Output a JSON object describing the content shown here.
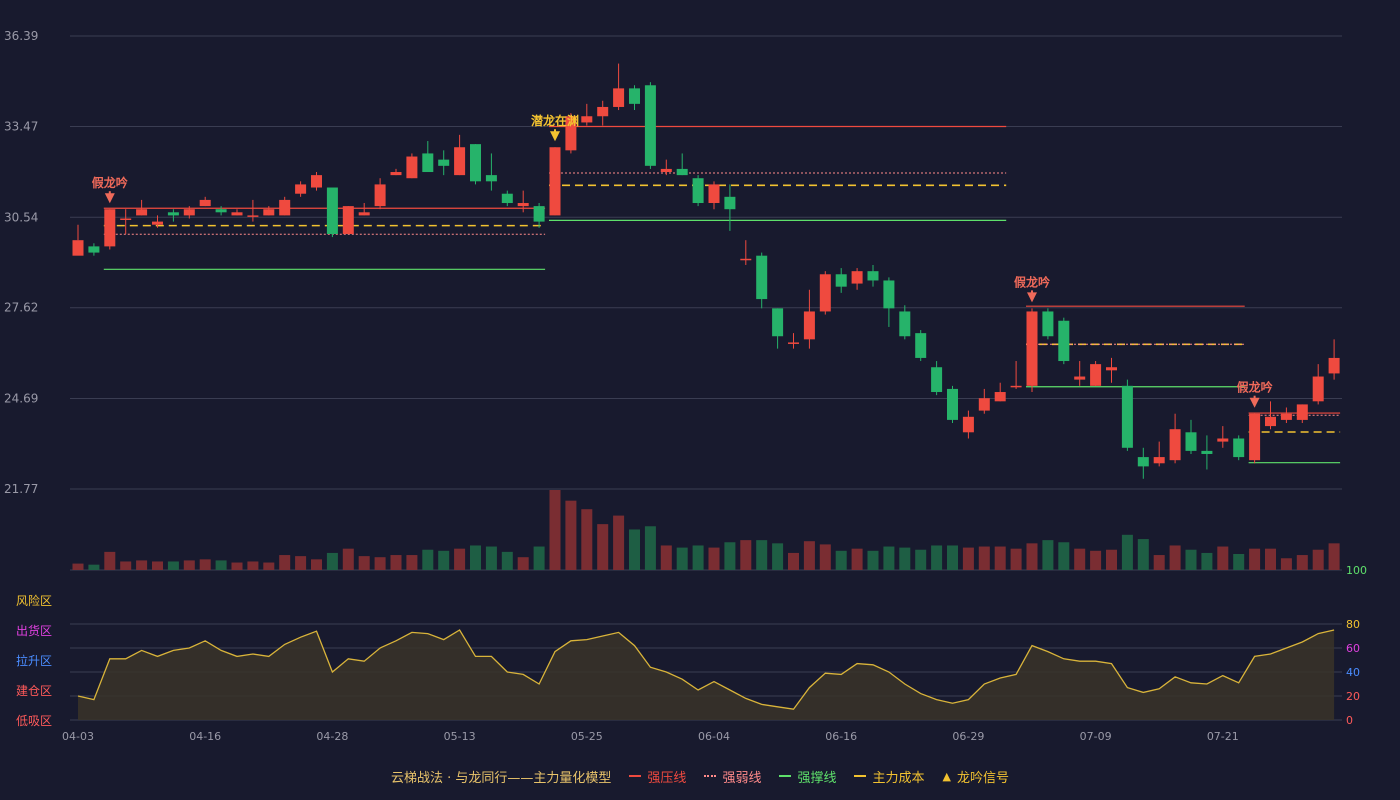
{
  "colors": {
    "bg": "#181a2e",
    "up": "#ef4a3f",
    "down": "#26b36a",
    "grid": "#3a3d52",
    "axis_text": "#9a9aa8",
    "pressure": "#ef4a3f",
    "weak": "#ff8a8a",
    "support": "#5ee06b",
    "cost": "#f2c230",
    "osc_line": "#d9b43a",
    "osc_fill": "#3a3428",
    "signal_gold": "#f2c230",
    "signal_red": "#ef6a5a"
  },
  "legend": {
    "model": "云梯战法 · 与龙同行——主力量化模型",
    "pressure": "强压线",
    "weak": "强弱线",
    "support": "强撑线",
    "cost": "主力成本",
    "signal": "龙吟信号"
  },
  "oscillator": {
    "zones": [
      "风险区",
      "出货区",
      "拉升区",
      "建仓区",
      "低吸区"
    ],
    "zone_colors": [
      "#f2c230",
      "#e040e0",
      "#4a8cff",
      "#ff5a5a",
      "#ff5a5a"
    ],
    "right_ticks": [
      "100",
      "80",
      "60",
      "40",
      "20",
      "0"
    ],
    "right_tick_colors": [
      "#5ee06b",
      "#f2c230",
      "#e040e0",
      "#4a8cff",
      "#ff5a5a",
      "#ff5a5a"
    ]
  },
  "chart_data": {
    "type": "candlestick",
    "y_ticks": [
      "36.39",
      "33.47",
      "30.54",
      "27.62",
      "24.69",
      "21.77"
    ],
    "ylim": [
      21.77,
      36.39
    ],
    "x_ticks": [
      {
        "index": 0,
        "label": "04-03"
      },
      {
        "index": 8,
        "label": "04-16"
      },
      {
        "index": 16,
        "label": "04-28"
      },
      {
        "index": 24,
        "label": "05-13"
      },
      {
        "index": 32,
        "label": "05-25"
      },
      {
        "index": 40,
        "label": "06-04"
      },
      {
        "index": 48,
        "label": "06-16"
      },
      {
        "index": 56,
        "label": "06-29"
      },
      {
        "index": 64,
        "label": "07-09"
      },
      {
        "index": 72,
        "label": "07-21"
      }
    ],
    "candles": [
      [
        29.3,
        29.8,
        30.3,
        29.8
      ],
      [
        29.6,
        29.4,
        29.7,
        29.3
      ],
      [
        29.6,
        30.8,
        30.8,
        29.5
      ],
      [
        30.5,
        30.5,
        30.8,
        30.0
      ],
      [
        30.6,
        30.8,
        31.1,
        30.6
      ],
      [
        30.3,
        30.4,
        30.6,
        30.2
      ],
      [
        30.7,
        30.6,
        30.8,
        30.4
      ],
      [
        30.6,
        30.8,
        30.9,
        30.5
      ],
      [
        30.9,
        31.1,
        31.2,
        30.9
      ],
      [
        30.8,
        30.7,
        30.9,
        30.6
      ],
      [
        30.6,
        30.7,
        30.8,
        30.6
      ],
      [
        30.6,
        30.6,
        31.1,
        30.4
      ],
      [
        30.6,
        30.8,
        30.9,
        30.6
      ],
      [
        30.6,
        31.1,
        31.2,
        30.6
      ],
      [
        31.3,
        31.6,
        31.7,
        31.2
      ],
      [
        31.5,
        31.9,
        32.0,
        31.4
      ],
      [
        31.5,
        30.0,
        30.1,
        29.9
      ],
      [
        30.0,
        30.9,
        30.9,
        30.0
      ],
      [
        30.6,
        30.7,
        31.0,
        30.6
      ],
      [
        30.9,
        31.6,
        31.8,
        30.8
      ],
      [
        31.9,
        32.0,
        32.1,
        31.9
      ],
      [
        31.8,
        32.5,
        32.6,
        31.8
      ],
      [
        32.6,
        32.0,
        33.0,
        32.0
      ],
      [
        32.4,
        32.2,
        32.7,
        31.9
      ],
      [
        31.9,
        32.8,
        33.2,
        31.9
      ],
      [
        32.9,
        31.7,
        32.9,
        31.6
      ],
      [
        31.9,
        31.7,
        32.6,
        31.4
      ],
      [
        31.3,
        31.0,
        31.4,
        30.9
      ],
      [
        30.9,
        31.0,
        31.4,
        30.7
      ],
      [
        30.9,
        30.4,
        31.0,
        30.2
      ],
      [
        30.6,
        32.8,
        32.8,
        30.6
      ],
      [
        32.7,
        33.8,
        33.9,
        32.6
      ],
      [
        33.6,
        33.8,
        34.2,
        33.5
      ],
      [
        33.8,
        34.1,
        34.3,
        33.5
      ],
      [
        34.1,
        34.7,
        35.5,
        34.0
      ],
      [
        34.7,
        34.2,
        34.8,
        34.0
      ],
      [
        34.8,
        32.2,
        34.9,
        32.1
      ],
      [
        32.0,
        32.1,
        32.4,
        31.9
      ],
      [
        32.1,
        31.9,
        32.6,
        31.9
      ],
      [
        31.8,
        31.0,
        31.9,
        30.9
      ],
      [
        31.0,
        31.6,
        31.7,
        30.8
      ],
      [
        31.2,
        30.8,
        31.6,
        30.1
      ],
      [
        29.2,
        29.2,
        29.8,
        29.0
      ],
      [
        29.3,
        27.9,
        29.4,
        27.6
      ],
      [
        27.6,
        26.7,
        27.6,
        26.3
      ],
      [
        26.5,
        26.5,
        26.8,
        26.3
      ],
      [
        26.6,
        27.5,
        28.2,
        26.3
      ],
      [
        27.5,
        28.7,
        28.8,
        27.4
      ],
      [
        28.7,
        28.3,
        28.9,
        28.1
      ],
      [
        28.4,
        28.8,
        28.9,
        28.2
      ],
      [
        28.8,
        28.5,
        29.0,
        28.3
      ],
      [
        28.5,
        27.6,
        28.6,
        27.0
      ],
      [
        27.5,
        26.7,
        27.7,
        26.6
      ],
      [
        26.8,
        26.0,
        26.9,
        25.9
      ],
      [
        25.7,
        24.9,
        25.9,
        24.8
      ],
      [
        25.0,
        24.0,
        25.1,
        23.9
      ],
      [
        23.6,
        24.1,
        24.3,
        23.4
      ],
      [
        24.3,
        24.7,
        25.0,
        24.2
      ],
      [
        24.6,
        24.9,
        25.2,
        24.6
      ],
      [
        25.1,
        25.1,
        25.9,
        25.0
      ],
      [
        25.1,
        27.5,
        27.6,
        24.9
      ],
      [
        27.5,
        26.7,
        27.6,
        26.6
      ],
      [
        27.2,
        25.9,
        27.3,
        25.8
      ],
      [
        25.3,
        25.4,
        25.9,
        25.1
      ],
      [
        25.1,
        25.8,
        25.9,
        25.1
      ],
      [
        25.6,
        25.7,
        26.0,
        25.2
      ],
      [
        25.1,
        23.1,
        25.3,
        23.0
      ],
      [
        22.8,
        22.5,
        23.1,
        22.1
      ],
      [
        22.6,
        22.8,
        23.3,
        22.5
      ],
      [
        22.7,
        23.7,
        24.2,
        22.6
      ],
      [
        23.6,
        23.0,
        24.0,
        22.9
      ],
      [
        23.0,
        22.9,
        23.5,
        22.4
      ],
      [
        23.3,
        23.4,
        23.8,
        23.1
      ],
      [
        23.4,
        22.8,
        23.5,
        22.7
      ],
      [
        22.7,
        24.2,
        24.2,
        22.6
      ],
      [
        23.8,
        24.1,
        24.6,
        23.7
      ],
      [
        24.0,
        24.2,
        24.4,
        23.9
      ],
      [
        24.0,
        24.5,
        24.5,
        23.9
      ],
      [
        24.6,
        25.4,
        25.8,
        24.5
      ],
      [
        25.5,
        26.0,
        26.6,
        25.3
      ]
    ],
    "volume": [
      6,
      5,
      17,
      8,
      9,
      8,
      8,
      9,
      10,
      9,
      7,
      8,
      7,
      14,
      13,
      10,
      16,
      20,
      13,
      12,
      14,
      14,
      19,
      18,
      20,
      23,
      22,
      17,
      12,
      22,
      75,
      65,
      57,
      43,
      51,
      38,
      41,
      23,
      21,
      23,
      21,
      26,
      28,
      28,
      25,
      16,
      27,
      24,
      18,
      20,
      18,
      22,
      21,
      19,
      23,
      23,
      21,
      22,
      22,
      20,
      25,
      28,
      26,
      20,
      18,
      19,
      33,
      29,
      14,
      23,
      19,
      16,
      22,
      15,
      20,
      20,
      11,
      14,
      19,
      25
    ],
    "oscillator": [
      20,
      17,
      51,
      51,
      58,
      53,
      58,
      60,
      66,
      58,
      53,
      55,
      53,
      63,
      69,
      74,
      40,
      51,
      49,
      60,
      66,
      73,
      72,
      67,
      75,
      53,
      53,
      40,
      38,
      30,
      57,
      66,
      67,
      70,
      73,
      62,
      44,
      40,
      34,
      25,
      32,
      25,
      18,
      13,
      11,
      9,
      27,
      39,
      38,
      47,
      46,
      40,
      30,
      22,
      17,
      14,
      17,
      30,
      35,
      38,
      62,
      57,
      51,
      49,
      49,
      47,
      27,
      23,
      26,
      36,
      31,
      30,
      37,
      31,
      53,
      55,
      60,
      65,
      72,
      75
    ],
    "levels": [
      {
        "type": "pressure",
        "value": 30.83,
        "from": 2,
        "to": 29
      },
      {
        "type": "weak",
        "value": 29.99,
        "from": 2,
        "to": 29
      },
      {
        "type": "cost",
        "value": 30.27,
        "from": 2,
        "to": 29
      },
      {
        "type": "support",
        "value": 28.86,
        "from": 2,
        "to": 29
      },
      {
        "type": "pressure",
        "value": 33.47,
        "from": 30,
        "to": 58
      },
      {
        "type": "weak",
        "value": 31.97,
        "from": 30,
        "to": 58
      },
      {
        "type": "cost",
        "value": 31.57,
        "from": 30,
        "to": 58
      },
      {
        "type": "support",
        "value": 30.44,
        "from": 30,
        "to": 58
      },
      {
        "type": "pressure",
        "value": 27.67,
        "from": 60,
        "to": 73
      },
      {
        "type": "cost",
        "value": 26.44,
        "from": 60,
        "to": 73
      },
      {
        "type": "weak",
        "value": 26.44,
        "from": 60,
        "to": 73
      },
      {
        "type": "support",
        "value": 25.07,
        "from": 60,
        "to": 73
      },
      {
        "type": "pressure",
        "value": 24.22,
        "from": 74,
        "to": 79
      },
      {
        "type": "weak",
        "value": 24.15,
        "from": 74,
        "to": 79
      },
      {
        "type": "cost",
        "value": 23.61,
        "from": 74,
        "to": 79
      },
      {
        "type": "support",
        "value": 22.62,
        "from": 74,
        "to": 79
      }
    ],
    "signals": [
      {
        "index": 2,
        "label": "假龙吟",
        "kind": "red"
      },
      {
        "index": 30,
        "label": "潜龙在渊",
        "kind": "gold"
      },
      {
        "index": 60,
        "label": "假龙吟",
        "kind": "red"
      },
      {
        "index": 74,
        "label": "假龙吟",
        "kind": "red"
      }
    ]
  }
}
